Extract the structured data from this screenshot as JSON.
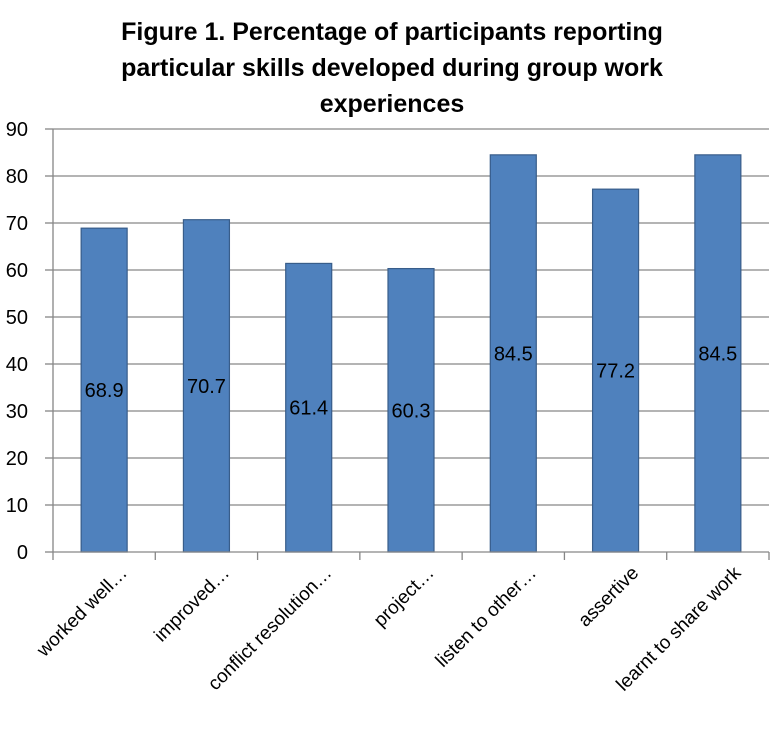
{
  "chart_data": {
    "type": "bar",
    "title_lines": [
      "Figure 1. Percentage of participants  reporting",
      "particular skills developed during group work",
      "experiences"
    ],
    "categories": [
      "worked well…",
      "improved…",
      "conflict resolution…",
      "project…",
      "listen to other…",
      "assertive",
      "learnt to share work"
    ],
    "values": [
      68.9,
      70.7,
      61.4,
      60.3,
      84.5,
      77.2,
      84.5
    ],
    "data_labels": [
      "68.9",
      "70.7",
      "61.4",
      "60.3",
      "84.5",
      "77.2",
      "84.5"
    ],
    "ylim": [
      0,
      90
    ],
    "yticks": [
      "0",
      "10",
      "20",
      "30",
      "40",
      "50",
      "60",
      "70",
      "80",
      "90"
    ],
    "grid": true,
    "legend": "none",
    "colors": {
      "bar_fill": "#4F81BD",
      "bar_stroke": "#385D8A",
      "grid": "#868686",
      "axis": "#868686"
    }
  }
}
